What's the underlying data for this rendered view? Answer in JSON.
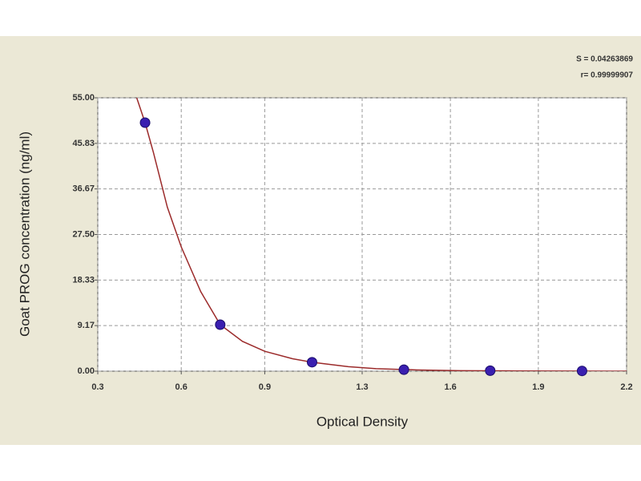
{
  "chart_data": {
    "type": "scatter",
    "xlabel": "Optical Density",
    "ylabel": "Goat PROG concentration (ng/ml)",
    "annotations": [
      "S = 0.04263869",
      "r= 0.99999907"
    ],
    "xlim": [
      0.3,
      2.2
    ],
    "xticks": [
      0.3,
      0.6,
      0.9,
      {
        "value": 1.25,
        "label": "1.3"
      },
      {
        "value": 1.567,
        "label": "1.6"
      },
      {
        "value": 1.883,
        "label": "1.9"
      },
      2.2
    ],
    "ylim": [
      0,
      55
    ],
    "yticks": [
      {
        "value": 0,
        "label": "0.00"
      },
      9.17,
      18.33,
      {
        "value": 27.5,
        "label": "27.50"
      },
      36.67,
      45.83,
      {
        "value": 55,
        "label": "55.00"
      }
    ],
    "grid": true,
    "points": {
      "color": "#3a1fb0",
      "x": [
        0.47,
        0.74,
        1.07,
        1.4,
        1.71,
        2.04
      ],
      "y": [
        50,
        9.35,
        1.8,
        0.3,
        0.1,
        0.05
      ]
    },
    "curve": {
      "color": "#9b2a2a",
      "x": [
        0.44,
        0.47,
        0.5,
        0.55,
        0.6,
        0.67,
        0.74,
        0.82,
        0.9,
        1.0,
        1.07,
        1.2,
        1.3,
        1.45,
        1.6,
        1.8,
        2.0,
        2.2
      ],
      "y": [
        55,
        50,
        44,
        33,
        25,
        16,
        9.35,
        6,
        4,
        2.5,
        1.8,
        0.9,
        0.5,
        0.25,
        0.1,
        0.05,
        0.02,
        0
      ]
    }
  }
}
